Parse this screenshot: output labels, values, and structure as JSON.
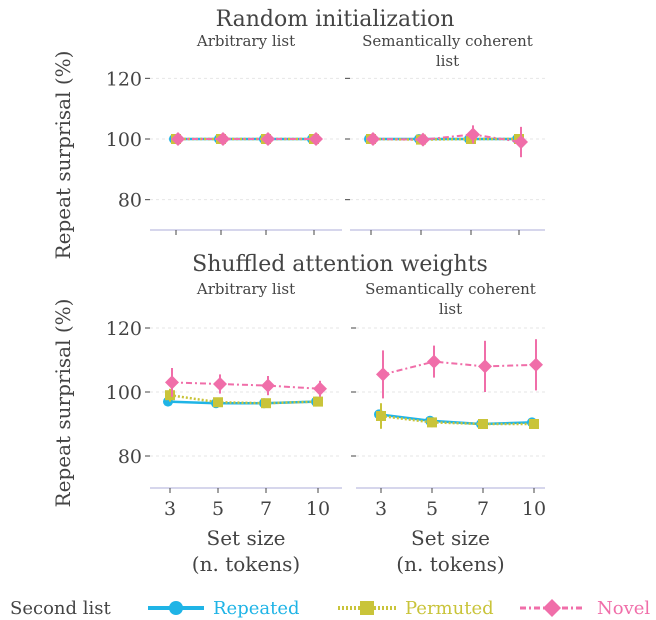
{
  "colors": {
    "repeated": "#1fb4e6",
    "permuted": "#c9c43a",
    "novel": "#f06ea9",
    "grid": "#e6e6e6",
    "axis": "#c9c9e6",
    "text": "#444444"
  },
  "legend": {
    "title": "Second list",
    "items": [
      {
        "key": "repeated",
        "label": "Repeated",
        "style": "solid",
        "marker": "circle"
      },
      {
        "key": "permuted",
        "label": "Permuted",
        "style": "dotted",
        "marker": "square"
      },
      {
        "key": "novel",
        "label": "Novel",
        "style": "dashdot",
        "marker": "diamond"
      }
    ]
  },
  "chart_data": [
    {
      "type": "line",
      "title": "Random initialization",
      "subtitle": "Arbitrary list",
      "ylabel": "Repeat surprisal (%)",
      "xlabel": "",
      "categories": [
        "3",
        "5",
        "7",
        "10"
      ],
      "ylim": [
        70,
        130
      ],
      "yticks": [
        80,
        100,
        120
      ],
      "grid": true,
      "series": [
        {
          "name": "Repeated",
          "values": [
            100,
            100,
            100,
            100
          ],
          "err": [
            0.4,
            0.4,
            0.4,
            0.4
          ]
        },
        {
          "name": "Permuted",
          "values": [
            100,
            100,
            100,
            100
          ],
          "err": [
            0.4,
            0.4,
            0.4,
            0.4
          ]
        },
        {
          "name": "Novel",
          "values": [
            100,
            100,
            100,
            100
          ],
          "err": [
            0.4,
            0.4,
            0.4,
            0.4
          ]
        }
      ]
    },
    {
      "type": "line",
      "title": "",
      "subtitle": "Semantically coherent\nlist",
      "ylabel": "",
      "xlabel": "",
      "categories": [
        "3",
        "5",
        "7",
        "10"
      ],
      "ylim": [
        70,
        130
      ],
      "yticks": [
        80,
        100,
        120
      ],
      "grid": true,
      "series": [
        {
          "name": "Repeated",
          "values": [
            100,
            100,
            100,
            100
          ],
          "err": [
            0.5,
            0.5,
            0.5,
            0.5
          ]
        },
        {
          "name": "Permuted",
          "values": [
            100,
            99.8,
            100,
            100
          ],
          "err": [
            0.8,
            1.2,
            1,
            1.2
          ]
        },
        {
          "name": "Novel",
          "values": [
            100,
            99.8,
            101.5,
            99
          ],
          "err": [
            1,
            2,
            3,
            5
          ]
        }
      ]
    },
    {
      "type": "line",
      "title": "Shuffled attention weights",
      "subtitle": "Arbitrary list",
      "ylabel": "Repeat surprisal (%)",
      "xlabel": "Set size\n(n. tokens)",
      "categories": [
        "3",
        "5",
        "7",
        "10"
      ],
      "ylim": [
        70,
        130
      ],
      "yticks": [
        80,
        100,
        120
      ],
      "grid": true,
      "series": [
        {
          "name": "Repeated",
          "values": [
            97,
            96.5,
            96.5,
            97
          ],
          "err": [
            0.6,
            0.5,
            0.5,
            0.5
          ]
        },
        {
          "name": "Permuted",
          "values": [
            99,
            96.8,
            96.5,
            97
          ],
          "err": [
            2,
            0.6,
            0.5,
            0.5
          ]
        },
        {
          "name": "Novel",
          "values": [
            103,
            102.5,
            102,
            101
          ],
          "err": [
            4.5,
            3,
            3,
            2.5
          ]
        }
      ]
    },
    {
      "type": "line",
      "title": "",
      "subtitle": "Semantically coherent\nlist",
      "ylabel": "",
      "xlabel": "Set size\n(n. tokens)",
      "categories": [
        "3",
        "5",
        "7",
        "10"
      ],
      "ylim": [
        70,
        130
      ],
      "yticks": [
        80,
        100,
        120
      ],
      "grid": true,
      "series": [
        {
          "name": "Repeated",
          "values": [
            93,
            91,
            90,
            90.5
          ],
          "err": [
            0.8,
            0.8,
            0.8,
            0.8
          ]
        },
        {
          "name": "Permuted",
          "values": [
            92.5,
            90.5,
            90,
            90
          ],
          "err": [
            4,
            1.5,
            1,
            1
          ]
        },
        {
          "name": "Novel",
          "values": [
            105.5,
            109.5,
            108,
            108.5
          ],
          "err": [
            7.5,
            5,
            8,
            8
          ]
        }
      ]
    }
  ]
}
